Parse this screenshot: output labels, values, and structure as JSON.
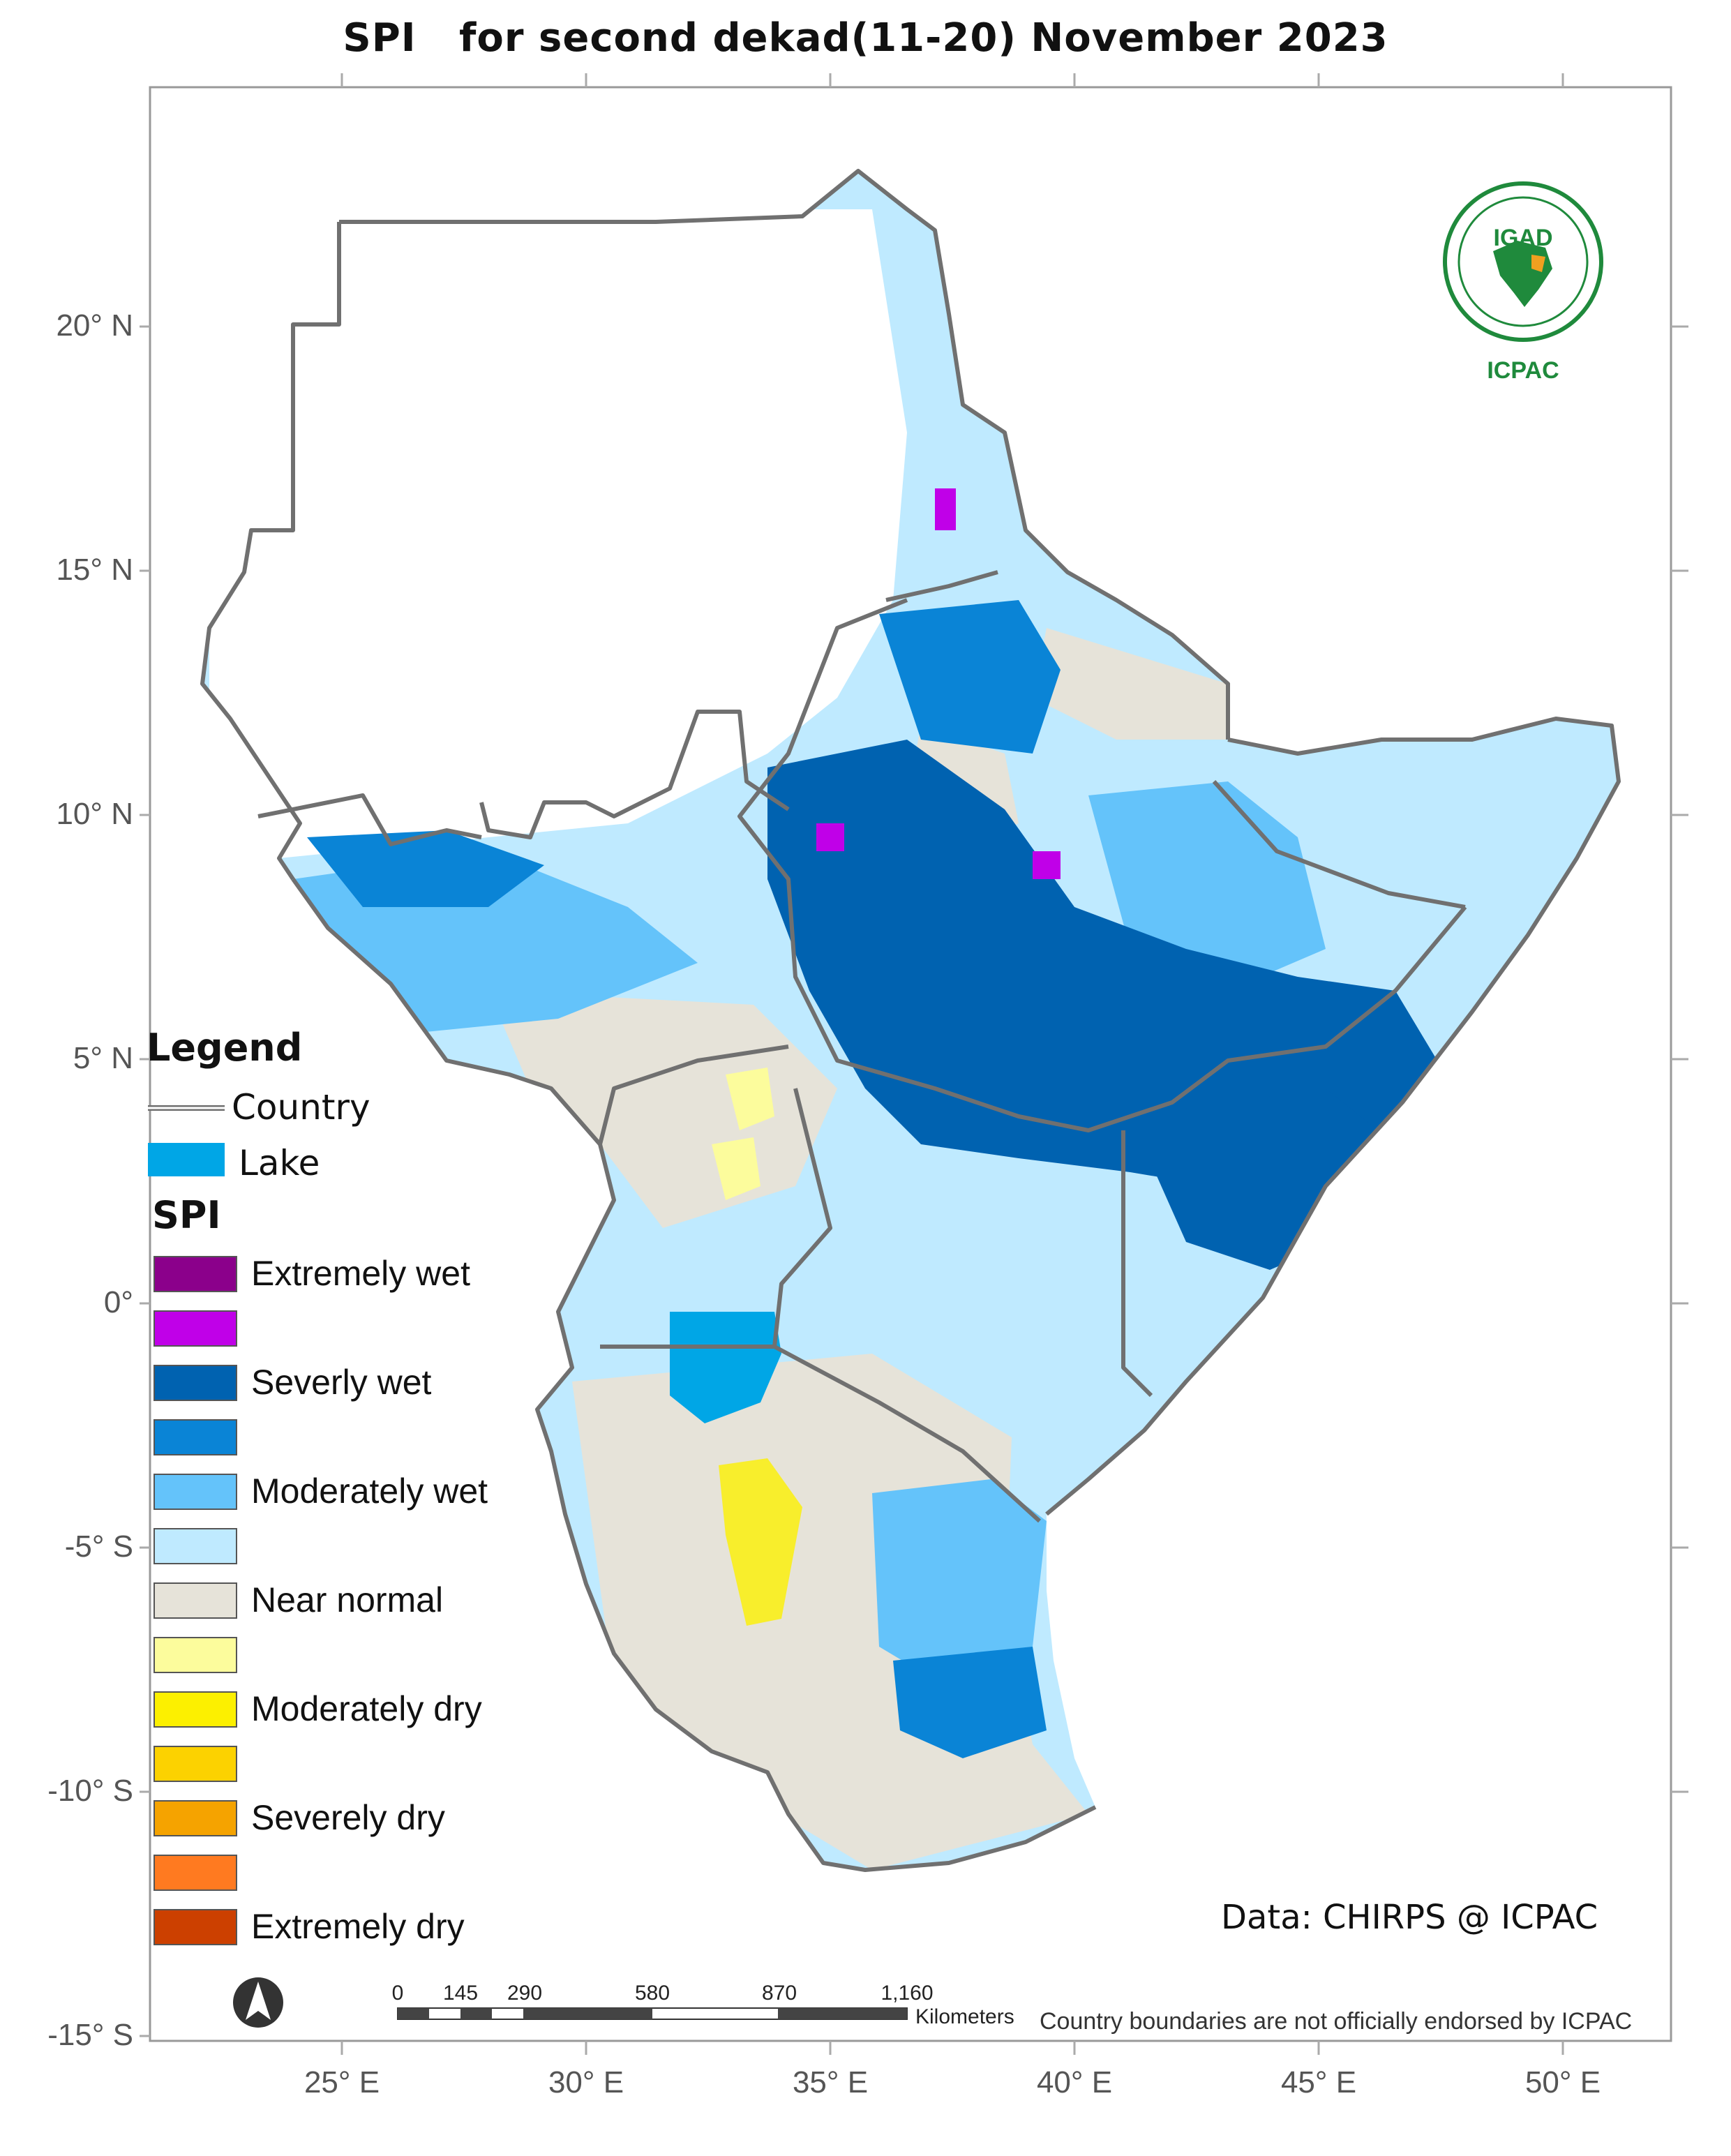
{
  "title": "SPI   for second dekad(11-20) November 2023",
  "lat_labels": [
    "20° N",
    "15° N",
    "10° N",
    "5° N",
    "0°",
    "-5° S",
    "-10° S",
    "-15° S"
  ],
  "lon_labels": [
    "25° E",
    "30° E",
    "35° E",
    "40° E",
    "45° E",
    "50° E"
  ],
  "legend": {
    "title": "Legend",
    "country_label": "Country",
    "lake_label": "Lake",
    "lake_color": "#00a6e6",
    "spi_title": "SPI",
    "classes": [
      {
        "label": "Extremely wet",
        "color": "#8b008b"
      },
      {
        "label": "",
        "color": "#c000e8"
      },
      {
        "label": "Severly wet",
        "color": "#0062b0"
      },
      {
        "label": "",
        "color": "#0a84d6"
      },
      {
        "label": "Moderately wet",
        "color": "#64c3fa"
      },
      {
        "label": "",
        "color": "#bfeaff"
      },
      {
        "label": "Near normal",
        "color": "#e6e3d9"
      },
      {
        "label": "",
        "color": "#fcfc9c"
      },
      {
        "label": "Moderately dry",
        "color": "#fcf000"
      },
      {
        "label": "",
        "color": "#fcd200"
      },
      {
        "label": "Severely dry",
        "color": "#f5a300"
      },
      {
        "label": "",
        "color": "#ff7a20"
      },
      {
        "label": "Extremely dry",
        "color": "#cc4000"
      }
    ]
  },
  "data_credit": "Data: CHIRPS @ ICPAC",
  "disclaimer": "Country boundaries are not officially endorsed by ICPAC",
  "scale_bar": {
    "ticks": [
      "0",
      "145",
      "290",
      "580",
      "870",
      "1,160"
    ],
    "unit": "Kilometers"
  },
  "logo": {
    "top_text": "IGAD",
    "bottom_text": "ICPAC",
    "color": "#1f8a3c"
  },
  "colors": {
    "country_border": "#707070",
    "frame": "#999999",
    "axis_text": "#555555"
  }
}
